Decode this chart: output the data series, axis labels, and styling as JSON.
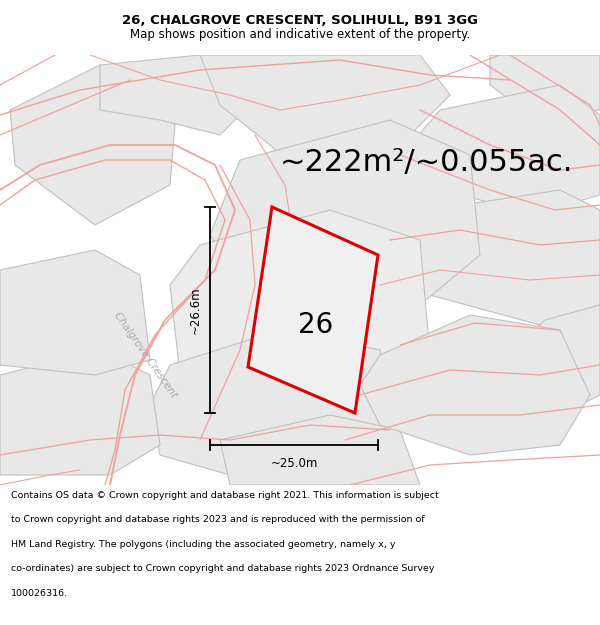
{
  "title_line1": "26, CHALGROVE CRESCENT, SOLIHULL, B91 3GG",
  "title_line2": "Map shows position and indicative extent of the property.",
  "area_text": "~222m²/~0.055ac.",
  "label_26": "26",
  "dim_height": "~26.6m",
  "dim_width": "~25.0m",
  "road_label": "Chalgrove Crescent",
  "footer_lines": [
    "Contains OS data © Crown copyright and database right 2021. This information is subject",
    "to Crown copyright and database rights 2023 and is reproduced with the permission of",
    "HM Land Registry. The polygons (including the associated geometry, namely x, y",
    "co-ordinates) are subject to Crown copyright and database rights 2023 Ordnance Survey",
    "100026316."
  ],
  "bg_color": "#ffffff",
  "map_bg": "#f8f8f8",
  "plot_fill": "#f0f0f0",
  "plot_edge": "#dd0000",
  "cadastral_fill": "#e8e8e8",
  "cadastral_edge": "#c0c0c0",
  "road_color": "#f0a0a0",
  "title_fontsize": 9.5,
  "area_fontsize": 22,
  "label_fontsize": 20,
  "footer_fontsize": 6.8,
  "road_label_color": "#aaaaaa"
}
